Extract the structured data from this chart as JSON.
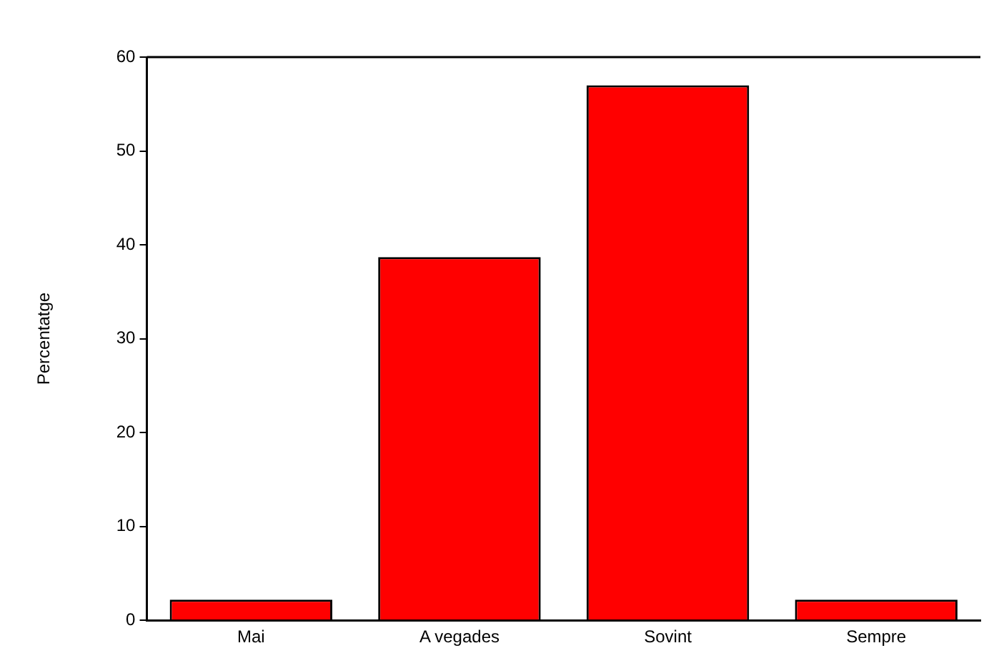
{
  "chart_data": {
    "type": "bar",
    "ylabel": "Percentatge",
    "categories": [
      "Mai",
      "A vegades",
      "Sovint",
      "Sempre"
    ],
    "values": [
      2.2,
      38.7,
      57.0,
      2.2
    ],
    "color": "#ff0000",
    "ylim": [
      0,
      60
    ],
    "yticks": [
      0,
      10,
      20,
      30,
      40,
      50,
      60
    ],
    "grid": false,
    "legend": false
  }
}
